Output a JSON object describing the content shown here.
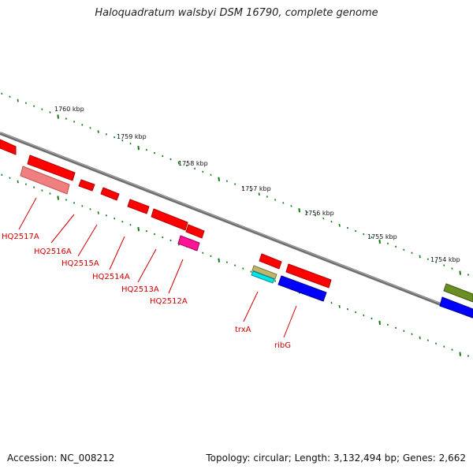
{
  "title": "Haloquadratum walsbyi DSM 16790, complete genome",
  "footer": {
    "accession": "Accession: NC_008212",
    "summary": "Topology: circular; Length: 3,132,494 bp; Genes: 2,662"
  },
  "kbp_labels": [
    "1760 kbp",
    "1759 kbp",
    "1758 kbp",
    "1757 kbp",
    "1756 kbp",
    "1755 kbp",
    "1754 kbp"
  ],
  "gene_labels": [
    "HQ2517A",
    "HQ2516A",
    "HQ2515A",
    "HQ2514A",
    "HQ2513A",
    "HQ2512A",
    "trxA",
    "ribG"
  ],
  "colors": {
    "backbone": "#808080",
    "tick": "#0a7a0a",
    "gene_red": "#ff0000",
    "gene_pink": "#f08080",
    "gene_magenta": "#ff1493",
    "gene_tan": "#bdb76b",
    "gene_cyan": "#00e5ee",
    "gene_blue": "#0000ff",
    "gene_olive": "#6b8e23",
    "label": "#d00000"
  }
}
